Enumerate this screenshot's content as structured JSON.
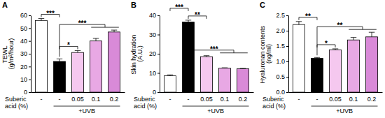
{
  "chart_data": [
    {
      "type": "bar",
      "title": "A",
      "ylabel": "TEWL (g/m²/hour)",
      "xlabel": "Suberic acid (%)",
      "categories": [
        "-",
        "-",
        "0.05",
        "0.1",
        "0.2"
      ],
      "values": [
        56,
        24,
        31,
        40,
        47
      ],
      "errors": [
        1.5,
        2,
        1.5,
        2,
        1.5
      ],
      "colors": [
        "#ffffff",
        "#000000",
        "#f5c8ef",
        "#e8a8e4",
        "#d98ad8"
      ],
      "ylim": [
        0,
        60
      ],
      "yticks": [
        0,
        10,
        20,
        30,
        40,
        50,
        60
      ],
      "group": {
        "label": "+UVB",
        "from": 1,
        "to": 4
      },
      "annotations": [
        {
          "text": "***",
          "from": 0,
          "to": 1
        },
        {
          "text": "*",
          "from": 1,
          "to": 2
        },
        {
          "text": "***",
          "from": 1,
          "to": [
            3,
            4
          ]
        }
      ]
    },
    {
      "type": "bar",
      "title": "B",
      "ylabel": "Skin hydration (A.U.)",
      "xlabel": "Suberic acid (%)",
      "categories": [
        "-",
        "-",
        "0.05",
        "0.1",
        "0.2"
      ],
      "values": [
        8.5,
        36.5,
        18.5,
        12.5,
        12.2
      ],
      "errors": [
        0.5,
        1,
        0.5,
        0.2,
        0.2
      ],
      "colors": [
        "#ffffff",
        "#000000",
        "#f5c8ef",
        "#e8a8e4",
        "#d98ad8"
      ],
      "ylim": [
        0,
        40
      ],
      "yticks": [
        0,
        10,
        20,
        30,
        40
      ],
      "group": {
        "label": "+UVB",
        "from": 1,
        "to": 4
      },
      "annotations": [
        {
          "text": "**",
          "from": 1,
          "to": 2
        },
        {
          "text": "***",
          "from": 0,
          "to": 1
        },
        {
          "text": "***",
          "from": 1,
          "to": [
            3,
            4
          ]
        }
      ]
    },
    {
      "type": "bar",
      "title": "C",
      "ylabel": "Hyaluronan contents (ng/ml)",
      "xlabel": "Suberic acid (%)",
      "categories": [
        "-",
        "-",
        "0.05",
        "0.1",
        "0.2"
      ],
      "values": [
        2.2,
        1.1,
        1.38,
        1.7,
        1.8
      ],
      "errors": [
        0.1,
        0.03,
        0.03,
        0.08,
        0.15
      ],
      "colors": [
        "#ffffff",
        "#000000",
        "#f5c8ef",
        "#e8a8e4",
        "#d98ad8"
      ],
      "ylim": [
        0,
        2.5
      ],
      "yticks": [
        {
          "value": 0,
          "label": "0.0"
        },
        0.5,
        {
          "value": 1,
          "label": "1.0"
        },
        1.5,
        {
          "value": 2,
          "label": "2.0"
        },
        2.5
      ],
      "group": {
        "label": "+UVB",
        "from": 1,
        "to": 4
      },
      "annotations": [
        {
          "text": "**",
          "from": 0,
          "to": 1
        },
        {
          "text": "*",
          "from": 1,
          "to": 2
        },
        {
          "text": "**",
          "from": 1,
          "to": [
            3,
            4
          ]
        }
      ]
    }
  ]
}
